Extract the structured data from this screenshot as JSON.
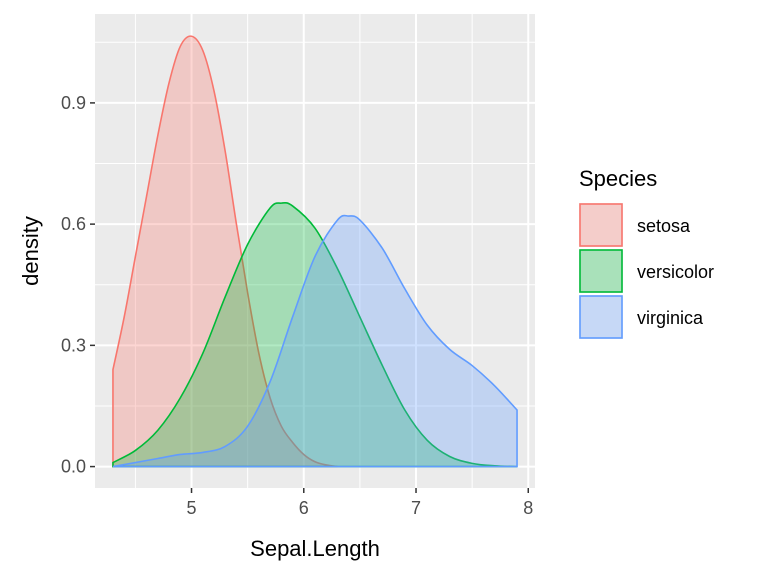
{
  "chart_data": {
    "type": "area",
    "title": "",
    "xlabel": "Sepal.Length",
    "ylabel": "density",
    "xlim": [
      4.14,
      8.06
    ],
    "ylim": [
      -0.053,
      1.12
    ],
    "x_ticks": [
      5,
      6,
      7,
      8
    ],
    "x_tick_labels": [
      "5",
      "6",
      "7",
      "8"
    ],
    "y_ticks": [
      0.0,
      0.3,
      0.6,
      0.9
    ],
    "y_tick_labels": [
      "0.0",
      "0.3",
      "0.6",
      "0.9"
    ],
    "grid": true,
    "legend": {
      "title": "Species",
      "position": "right"
    },
    "series": [
      {
        "name": "setosa",
        "stroke": "#F8766D",
        "fill": "#F8766D",
        "fill_opacity": 0.3,
        "x": [
          4.3,
          4.4,
          4.5,
          4.6,
          4.7,
          4.8,
          4.9,
          5.0,
          5.1,
          5.2,
          5.3,
          5.4,
          5.5,
          5.6,
          5.7,
          5.8,
          5.9,
          6.0,
          6.1,
          6.2,
          6.3
        ],
        "y": [
          0.24,
          0.37,
          0.52,
          0.67,
          0.82,
          0.95,
          1.04,
          1.065,
          1.03,
          0.93,
          0.78,
          0.6,
          0.43,
          0.28,
          0.17,
          0.1,
          0.06,
          0.03,
          0.012,
          0.004,
          0.0
        ]
      },
      {
        "name": "versicolor",
        "stroke": "#00BA38",
        "fill": "#00BA38",
        "fill_opacity": 0.3,
        "x": [
          4.3,
          4.5,
          4.7,
          4.9,
          5.1,
          5.3,
          5.5,
          5.7,
          5.8,
          5.9,
          6.1,
          6.3,
          6.5,
          6.7,
          6.9,
          7.1,
          7.3,
          7.5,
          7.7,
          7.9
        ],
        "y": [
          0.01,
          0.04,
          0.09,
          0.17,
          0.28,
          0.42,
          0.55,
          0.64,
          0.652,
          0.645,
          0.59,
          0.49,
          0.37,
          0.25,
          0.14,
          0.065,
          0.025,
          0.008,
          0.002,
          0.0
        ]
      },
      {
        "name": "virginica",
        "stroke": "#619CFF",
        "fill": "#619CFF",
        "fill_opacity": 0.3,
        "x": [
          4.3,
          4.5,
          4.7,
          4.9,
          5.1,
          5.3,
          5.5,
          5.7,
          5.9,
          6.1,
          6.3,
          6.4,
          6.5,
          6.7,
          6.9,
          7.1,
          7.3,
          7.5,
          7.7,
          7.9
        ],
        "y": [
          0.0,
          0.01,
          0.02,
          0.03,
          0.035,
          0.05,
          0.1,
          0.21,
          0.37,
          0.52,
          0.61,
          0.62,
          0.61,
          0.54,
          0.44,
          0.35,
          0.29,
          0.25,
          0.2,
          0.14
        ]
      }
    ]
  }
}
